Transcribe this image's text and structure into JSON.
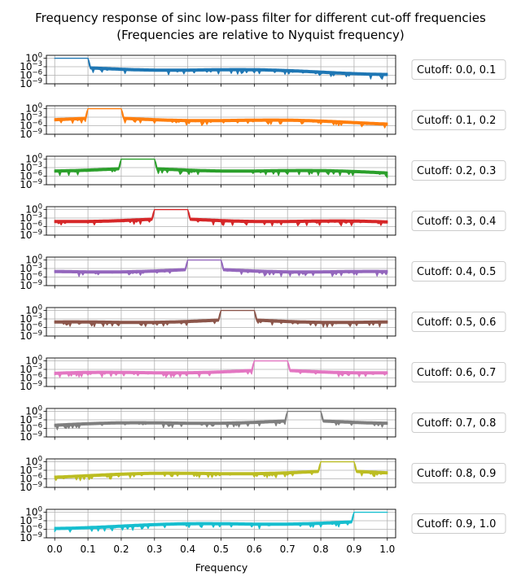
{
  "chart_data": {
    "type": "line",
    "title": "Frequency response of sinc low-pass filter for different cut-off frequencies",
    "subtitle": "(Frequencies are relative to Nyquist frequency)",
    "xlabel": "Frequency",
    "ylabel": "",
    "xlim": [
      -0.025,
      1.025
    ],
    "xticks": [
      "0.0",
      "0.1",
      "0.2",
      "0.3",
      "0.4",
      "0.5",
      "0.6",
      "0.7",
      "0.8",
      "0.9",
      "1.0"
    ],
    "yscale": "log",
    "ylim": [
      1e-09,
      10
    ],
    "yticks": [
      {
        "base": "10",
        "exp": "0"
      },
      {
        "base": "10",
        "exp": "−3"
      },
      {
        "base": "10",
        "exp": "−6"
      },
      {
        "base": "10",
        "exp": "−9"
      }
    ],
    "grid": true,
    "legend_placement": "right",
    "series": [
      {
        "name": "Cutoff: 0.0, 0.1",
        "band": [
          0.0,
          0.1
        ],
        "passband_gain": 1,
        "color": "#1f77b4"
      },
      {
        "name": "Cutoff: 0.1, 0.2",
        "band": [
          0.1,
          0.2
        ],
        "passband_gain": 1,
        "color": "#ff7f0e"
      },
      {
        "name": "Cutoff: 0.2, 0.3",
        "band": [
          0.2,
          0.3
        ],
        "passband_gain": 1,
        "color": "#2ca02c"
      },
      {
        "name": "Cutoff: 0.3, 0.4",
        "band": [
          0.3,
          0.4
        ],
        "passband_gain": 1,
        "color": "#d62728"
      },
      {
        "name": "Cutoff: 0.4, 0.5",
        "band": [
          0.4,
          0.5
        ],
        "passband_gain": 1,
        "color": "#9467bd"
      },
      {
        "name": "Cutoff: 0.5, 0.6",
        "band": [
          0.5,
          0.6
        ],
        "passband_gain": 1,
        "color": "#8c564b"
      },
      {
        "name": "Cutoff: 0.6, 0.7",
        "band": [
          0.6,
          0.7
        ],
        "passband_gain": 1,
        "color": "#e377c2"
      },
      {
        "name": "Cutoff: 0.7, 0.8",
        "band": [
          0.7,
          0.8
        ],
        "passband_gain": 1,
        "color": "#7f7f7f"
      },
      {
        "name": "Cutoff: 0.8, 0.9",
        "band": [
          0.8,
          0.9
        ],
        "passband_gain": 1,
        "color": "#bcbd22"
      },
      {
        "name": "Cutoff: 0.9, 1.0",
        "band": [
          0.9,
          1.0
        ],
        "passband_gain": 1,
        "color": "#17becf"
      }
    ]
  }
}
